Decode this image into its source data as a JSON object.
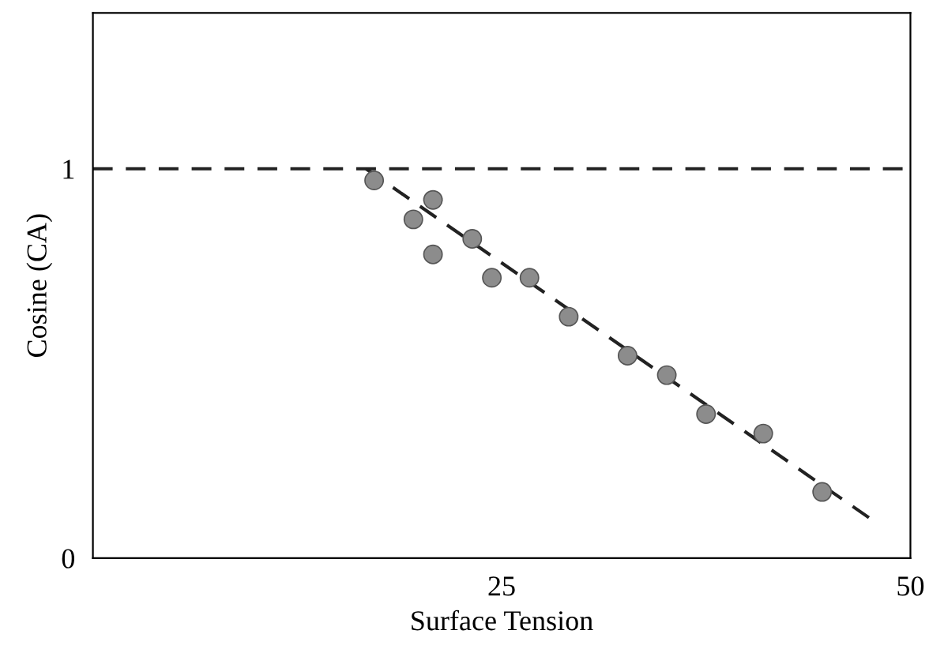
{
  "chart_data": {
    "type": "scatter",
    "xlabel": "Surface Tension",
    "ylabel": "Cosine (CA)",
    "xlim": [
      0,
      50
    ],
    "ylim": [
      0,
      1.4
    ],
    "xticks": [
      25,
      50
    ],
    "yticks": [
      0,
      1
    ],
    "grid": false,
    "series": [
      {
        "color": "#8c8c8c",
        "marker": "circle",
        "x": [
          17.2,
          19.6,
          20.8,
          20.8,
          23.2,
          24.4,
          26.7,
          29.1,
          32.7,
          35.1,
          37.5,
          41.0,
          44.6
        ],
        "values": [
          0.97,
          0.87,
          0.92,
          0.78,
          0.82,
          0.72,
          0.72,
          0.62,
          0.52,
          0.47,
          0.37,
          0.32,
          0.17
        ]
      },
      {
        "type": "line",
        "color": "#222222",
        "line_style": "dashed",
        "marker": "none",
        "x": [
          16.7,
          47.6
        ],
        "values": [
          1.0,
          0.1
        ]
      }
    ],
    "ref_lines": [
      {
        "axis": "y",
        "value": 1,
        "color": "#222222",
        "line_style": "dashed"
      }
    ]
  }
}
